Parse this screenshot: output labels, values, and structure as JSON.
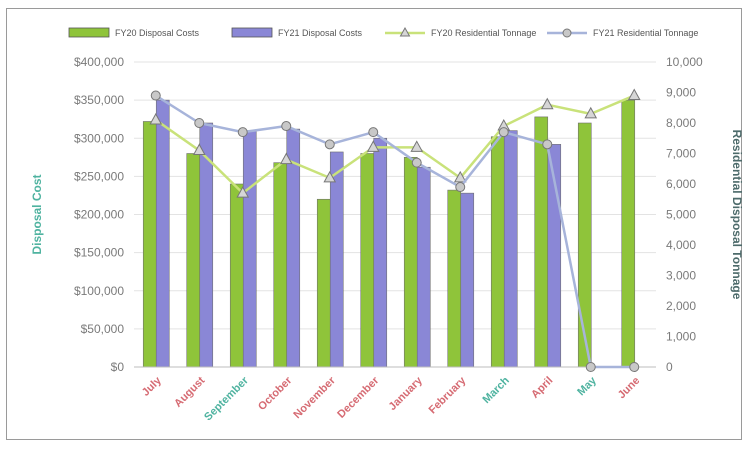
{
  "chart_data": {
    "type": "bar",
    "categories": [
      "July",
      "August",
      "September",
      "October",
      "November",
      "December",
      "January",
      "February",
      "March",
      "April",
      "May",
      "June"
    ],
    "category_colors": [
      "#d66b73",
      "#d66b73",
      "#4fb3a0",
      "#d66b73",
      "#d66b73",
      "#d66b73",
      "#d66b73",
      "#d66b73",
      "#4fb3a0",
      "#d66b73",
      "#4fb3a0",
      "#d66b73"
    ],
    "series": [
      {
        "name": "FY20 Disposal Costs",
        "type": "bar",
        "axis": "left",
        "color": "#8fc43a",
        "values": [
          322000,
          280000,
          240000,
          268000,
          220000,
          280000,
          275000,
          232000,
          302000,
          328000,
          320000,
          350000
        ]
      },
      {
        "name": "FY21 Disposal Costs",
        "type": "bar",
        "axis": "left",
        "color": "#8a87d6",
        "values": [
          350000,
          320000,
          310000,
          312000,
          282000,
          300000,
          262000,
          228000,
          310000,
          292000,
          null,
          null
        ]
      },
      {
        "name": "FY20 Residential Tonnage",
        "type": "line",
        "axis": "right",
        "color": "#c9e27a",
        "marker": "triangle",
        "values": [
          8100,
          7100,
          5700,
          6800,
          6200,
          7200,
          7200,
          6200,
          7900,
          8600,
          8300,
          8900
        ]
      },
      {
        "name": "FY21 Residential Tonnage",
        "type": "line",
        "axis": "right",
        "color": "#a7b4da",
        "marker": "circle",
        "values": [
          8900,
          8000,
          7700,
          7900,
          7300,
          7700,
          6700,
          5900,
          7700,
          7300,
          0,
          0
        ]
      }
    ],
    "title": "",
    "ylabel": "Disposal Cost",
    "y2label": "Residential Disposal Tonnage",
    "ylim": [
      0,
      400000
    ],
    "y2lim": [
      0,
      10000
    ],
    "yticks": [
      "$0",
      "$50,000",
      "$100,000",
      "$150,000",
      "$200,000",
      "$250,000",
      "$300,000",
      "$350,000",
      "$400,000"
    ],
    "y2ticks": [
      "0",
      "1,000",
      "2,000",
      "3,000",
      "4,000",
      "5,000",
      "6,000",
      "7,000",
      "8,000",
      "9,000",
      "10,000"
    ],
    "grid": true,
    "legend_position": "top"
  }
}
